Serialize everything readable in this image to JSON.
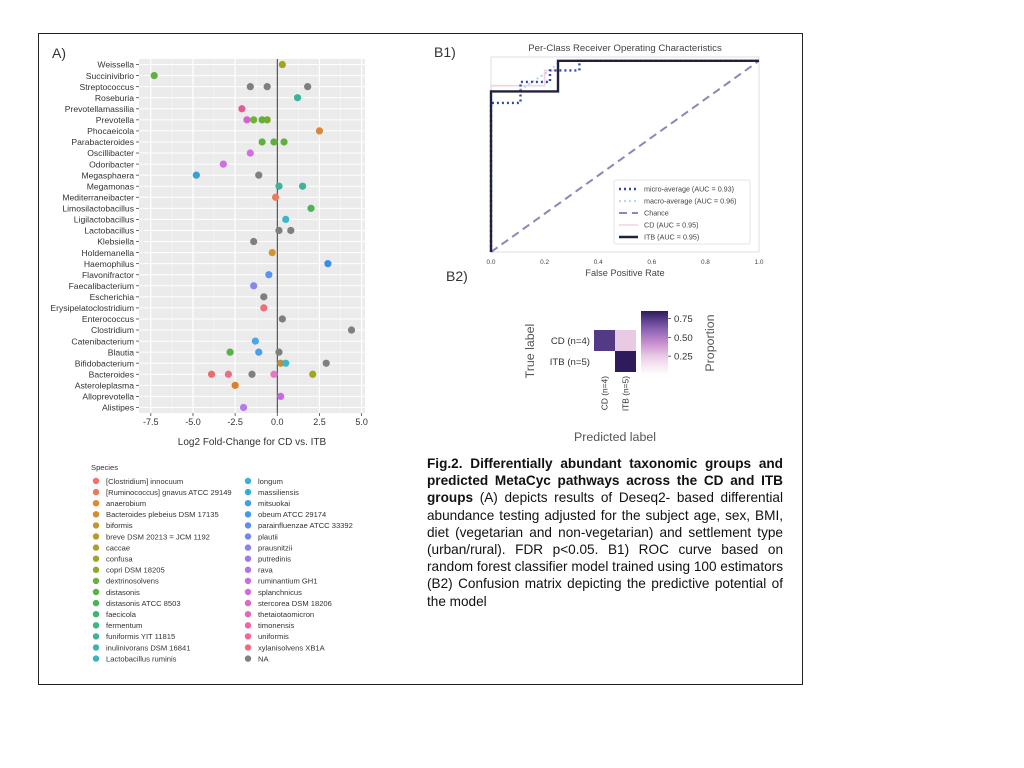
{
  "panels": {
    "a": "A)",
    "b1": "B1)",
    "b2": "B2)"
  },
  "chart_data": [
    {
      "type": "scatter",
      "panel": "A",
      "title": "",
      "xlabel": "Log2 Fold-Change for CD vs. ITB",
      "ylabel": "",
      "xlim": [
        -8.2,
        5.2
      ],
      "xticks": [
        "-7.5",
        "-5.0",
        "-2.5",
        "0.0",
        "2.5",
        "5.0"
      ],
      "xtick_values": [
        -7.5,
        -5.0,
        -2.5,
        0.0,
        2.5,
        5.0
      ],
      "background": "#ebebeb",
      "grid": true,
      "categories": [
        "Weissella",
        "Succinivibrio",
        "Streptococcus",
        "Roseburia",
        "Prevotellamassilia",
        "Prevotella",
        "Phocaeicola",
        "Parabacteroides",
        "Oscillibacter",
        "Odoribacter",
        "Megasphaera",
        "Megamonas",
        "Mediterraneibacter",
        "Limosilactobacillus",
        "Ligilactobacillus",
        "Lactobacillus",
        "Klebsiella",
        "Holdemanella",
        "Haemophilus",
        "Flavonifractor",
        "Faecalibacterium",
        "Escherichia",
        "Erysipelatoclostridium",
        "Enterococcus",
        "Clostridium",
        "Catenibacterium",
        "Blautia",
        "Bifidobacterium",
        "Bacteroides",
        "Asteroleplasma",
        "Alloprevotella",
        "Alistipes"
      ],
      "points": [
        {
          "genus": "Weissella",
          "x": 0.3,
          "color": "#a3a51f"
        },
        {
          "genus": "Succinivibrio",
          "x": -7.3,
          "color": "#5fb13f"
        },
        {
          "genus": "Streptococcus",
          "x": -1.6,
          "color": "#7f7f7f"
        },
        {
          "genus": "Streptococcus",
          "x": -0.6,
          "color": "#7f7f7f"
        },
        {
          "genus": "Streptococcus",
          "x": 1.8,
          "color": "#7f7f7f"
        },
        {
          "genus": "Roseburia",
          "x": 1.2,
          "color": "#3cb39a"
        },
        {
          "genus": "Prevotellamassilia",
          "x": -2.1,
          "color": "#e45a9c"
        },
        {
          "genus": "Prevotella",
          "x": -1.8,
          "color": "#dd5fd4"
        },
        {
          "genus": "Prevotella",
          "x": -1.4,
          "color": "#6cb33a"
        },
        {
          "genus": "Prevotella",
          "x": -0.9,
          "color": "#5fb13f"
        },
        {
          "genus": "Prevotella",
          "x": -0.6,
          "color": "#7aa932"
        },
        {
          "genus": "Phocaeicola",
          "x": 2.5,
          "color": "#d9873a"
        },
        {
          "genus": "Parabacteroides",
          "x": -0.9,
          "color": "#5fb13f"
        },
        {
          "genus": "Parabacteroides",
          "x": -0.2,
          "color": "#5fb13f"
        },
        {
          "genus": "Parabacteroides",
          "x": 0.4,
          "color": "#5fb13f"
        },
        {
          "genus": "Oscillibacter",
          "x": -1.6,
          "color": "#d36fe0"
        },
        {
          "genus": "Odoribacter",
          "x": -3.2,
          "color": "#cb6fe3"
        },
        {
          "genus": "Megasphaera",
          "x": -4.8,
          "color": "#36a1d8"
        },
        {
          "genus": "Megasphaera",
          "x": -1.1,
          "color": "#7f7f7f"
        },
        {
          "genus": "Megamonas",
          "x": 0.1,
          "color": "#3cb39a"
        },
        {
          "genus": "Megamonas",
          "x": 1.5,
          "color": "#3cb39a"
        },
        {
          "genus": "Mediterraneibacter",
          "x": -0.1,
          "color": "#e77b5a"
        },
        {
          "genus": "Limosilactobacillus",
          "x": 2.0,
          "color": "#4fb255"
        },
        {
          "genus": "Ligilactobacillus",
          "x": 0.5,
          "color": "#3bb7c8"
        },
        {
          "genus": "Lactobacillus",
          "x": 0.1,
          "color": "#7f7f7f"
        },
        {
          "genus": "Lactobacillus",
          "x": 0.8,
          "color": "#7f7f7f"
        },
        {
          "genus": "Klebsiella",
          "x": -1.4,
          "color": "#7f7f7f"
        },
        {
          "genus": "Holdemanella",
          "x": -0.3,
          "color": "#d39531"
        },
        {
          "genus": "Haemophilus",
          "x": 3.0,
          "color": "#3a8ee8"
        },
        {
          "genus": "Flavonifractor",
          "x": -0.5,
          "color": "#5c95ec"
        },
        {
          "genus": "Faecalibacterium",
          "x": -1.4,
          "color": "#8a86ee"
        },
        {
          "genus": "Escherichia",
          "x": -0.8,
          "color": "#7f7f7f"
        },
        {
          "genus": "Erysipelatoclostridium",
          "x": -0.8,
          "color": "#ee6f78"
        },
        {
          "genus": "Enterococcus",
          "x": 0.3,
          "color": "#7f7f7f"
        },
        {
          "genus": "Clostridium",
          "x": 4.4,
          "color": "#7f7f7f"
        },
        {
          "genus": "Catenibacterium",
          "x": -1.3,
          "color": "#49a9e4"
        },
        {
          "genus": "Blautia",
          "x": -2.8,
          "color": "#57b148"
        },
        {
          "genus": "Blautia",
          "x": -1.1,
          "color": "#4a9fe6"
        },
        {
          "genus": "Blautia",
          "x": 0.1,
          "color": "#7f7f7f"
        },
        {
          "genus": "Bifidobacterium",
          "x": 0.2,
          "color": "#c48e35"
        },
        {
          "genus": "Bifidobacterium",
          "x": 0.5,
          "color": "#3bb7c8"
        },
        {
          "genus": "Bifidobacterium",
          "x": 2.9,
          "color": "#7f7f7f"
        },
        {
          "genus": "Bacteroides",
          "x": -3.9,
          "color": "#ef6a6a"
        },
        {
          "genus": "Bacteroides",
          "x": -2.9,
          "color": "#ea6f86"
        },
        {
          "genus": "Bacteroides",
          "x": -1.5,
          "color": "#7f7f7f"
        },
        {
          "genus": "Bacteroides",
          "x": -0.2,
          "color": "#ea74c8"
        },
        {
          "genus": "Bacteroides",
          "x": 2.1,
          "color": "#a3a51f"
        },
        {
          "genus": "Asteroleplasma",
          "x": -2.5,
          "color": "#db7f2c"
        },
        {
          "genus": "Alloprevotella",
          "x": 0.2,
          "color": "#c66ae3"
        },
        {
          "genus": "Alistipes",
          "x": -2.0,
          "color": "#b37cee"
        }
      ]
    },
    {
      "type": "line",
      "panel": "B1",
      "title": "Per-Class Receiver Operating Characteristics",
      "xlabel": "False Positive Rate",
      "ylabel": "",
      "xlim": [
        0,
        1
      ],
      "ylim": [
        0,
        1.02
      ],
      "xticks": [
        "0.0",
        "0.2",
        "0.4",
        "0.6",
        "0.8",
        "1.0"
      ],
      "xtick_values": [
        0,
        0.2,
        0.4,
        0.6,
        0.8,
        1.0
      ],
      "legend_position": "bottom-right",
      "series": [
        {
          "name": "micro-average (AUC = 0.93)",
          "color": "#3049a8",
          "dash": "2,3",
          "width": 2.4,
          "x": [
            0,
            0,
            0.11,
            0.11,
            0.22,
            0.22,
            0.33,
            0.33,
            1.0
          ],
          "y": [
            0,
            0.78,
            0.78,
            0.89,
            0.89,
            0.95,
            0.95,
            1.0,
            1.0
          ]
        },
        {
          "name": "macro-average (AUC = 0.96)",
          "color": "#b9d6f1",
          "dash": "2,3",
          "width": 2.2,
          "x": [
            0,
            0,
            0.1,
            0.22,
            0.26,
            1.0
          ],
          "y": [
            0,
            0.84,
            0.84,
            0.95,
            1.0,
            1.0
          ]
        },
        {
          "name": "Chance",
          "color": "#8e86b7",
          "dash": "8,5",
          "width": 2,
          "x": [
            0,
            1
          ],
          "y": [
            0,
            1
          ]
        },
        {
          "name": "CD (AUC = 0.95)",
          "color": "#f2d3e2",
          "dash": "",
          "width": 1.6,
          "x": [
            0,
            0,
            0.2,
            0.2,
            0.25,
            0.25,
            1.0
          ],
          "y": [
            0,
            0.87,
            0.87,
            0.95,
            0.95,
            1.0,
            1.0
          ]
        },
        {
          "name": "ITB (AUC = 0.95)",
          "color": "#20203f",
          "dash": "",
          "width": 2.4,
          "x": [
            0,
            0,
            0.25,
            0.25,
            1.0
          ],
          "y": [
            0,
            0.84,
            0.84,
            1.0,
            1.0
          ]
        }
      ]
    },
    {
      "type": "heatmap",
      "panel": "B2",
      "title": "",
      "xlabel": "Predicted label",
      "ylabel": "True label",
      "row_labels": [
        "CD (n=4)",
        "ITB (n=5)"
      ],
      "col_labels": [
        "CD (n=4)",
        "ITB (n=5)"
      ],
      "values": [
        [
          0.75,
          0.25
        ],
        [
          0.0,
          1.0
        ]
      ],
      "colorbar_label": "Proportion",
      "colorbar_ticks": [
        "0.75",
        "0.50",
        "0.25"
      ],
      "colorbar_tick_values": [
        0.75,
        0.5,
        0.25
      ],
      "colorbar_range": [
        0.0,
        0.85
      ],
      "colormap": [
        "#ffffff",
        "#efd7ea",
        "#c88fcf",
        "#7f5bb0",
        "#2d1b5c"
      ]
    }
  ],
  "legend": {
    "title": "Species",
    "col1": [
      {
        "label": "[Clostridium] innocuum",
        "color": "#f0706a"
      },
      {
        "label": "[Ruminococcus] gnavus ATCC 29149",
        "color": "#ec7a52"
      },
      {
        "label": "anaerobium",
        "color": "#dc8a2a"
      },
      {
        "label": "Bacteroides plebeius DSM 17135",
        "color": "#d08f2b"
      },
      {
        "label": "biformis",
        "color": "#c6952b"
      },
      {
        "label": "breve DSM 20213 = JCM 1192",
        "color": "#bb9a2c"
      },
      {
        "label": "caccae",
        "color": "#ae9f2d"
      },
      {
        "label": "confusa",
        "color": "#a0a52f"
      },
      {
        "label": "copri DSM 18205",
        "color": "#8aaa33"
      },
      {
        "label": "dextrinosolvens",
        "color": "#6daf3a"
      },
      {
        "label": "distasonis",
        "color": "#55b247"
      },
      {
        "label": "distasonis ATCC 8503",
        "color": "#43b55a"
      },
      {
        "label": "faecicola",
        "color": "#3eb56f"
      },
      {
        "label": "fermentum",
        "color": "#3cb485"
      },
      {
        "label": "funiformis YIT 11815",
        "color": "#3bb49a"
      },
      {
        "label": "inulinivorans DSM 16841",
        "color": "#3bb4ae"
      },
      {
        "label": "Lactobacillus ruminis",
        "color": "#3bb3c2"
      }
    ],
    "col2": [
      {
        "label": "longum",
        "color": "#3bb0d1"
      },
      {
        "label": "massiliensis",
        "color": "#3aa9dd"
      },
      {
        "label": "mitsuokai",
        "color": "#3aa1e6"
      },
      {
        "label": "obeum ATCC 29174",
        "color": "#4398ec"
      },
      {
        "label": "parainfluenzae ATCC 33392",
        "color": "#5a8ff0"
      },
      {
        "label": "plautii",
        "color": "#7287f0"
      },
      {
        "label": "prausnitzii",
        "color": "#8a80ee"
      },
      {
        "label": "putredinis",
        "color": "#a07aeb"
      },
      {
        "label": "rava",
        "color": "#b574e6"
      },
      {
        "label": "ruminantium GH1",
        "color": "#c66fdf"
      },
      {
        "label": "splanchnicus",
        "color": "#d46bd5"
      },
      {
        "label": "stercorea DSM 18206",
        "color": "#df68c8"
      },
      {
        "label": "thetaiotaomicron",
        "color": "#e767b9"
      },
      {
        "label": "timonensis",
        "color": "#ed67a7"
      },
      {
        "label": "uniformis",
        "color": "#f06893"
      },
      {
        "label": "xylanisolvens XB1A",
        "color": "#f16a7f"
      },
      {
        "label": "NA",
        "color": "#7f7f7f"
      }
    ]
  },
  "caption": {
    "bold": "Fig.2. Differentially abundant taxonomic groups and predicted MetaCyc pathways across the CD and ITB groups",
    "text": " (A) depicts results of Deseq2- based differential abundance testing adjusted for the subject age, sex, BMI, diet (vegetarian and non-vegetarian) and settlement type (urban/rural). FDR p<0.05. B1) ROC curve based on random forest classifier model trained using 100 estimators (B2) Confusion matrix depicting the predictive potential of the model"
  }
}
